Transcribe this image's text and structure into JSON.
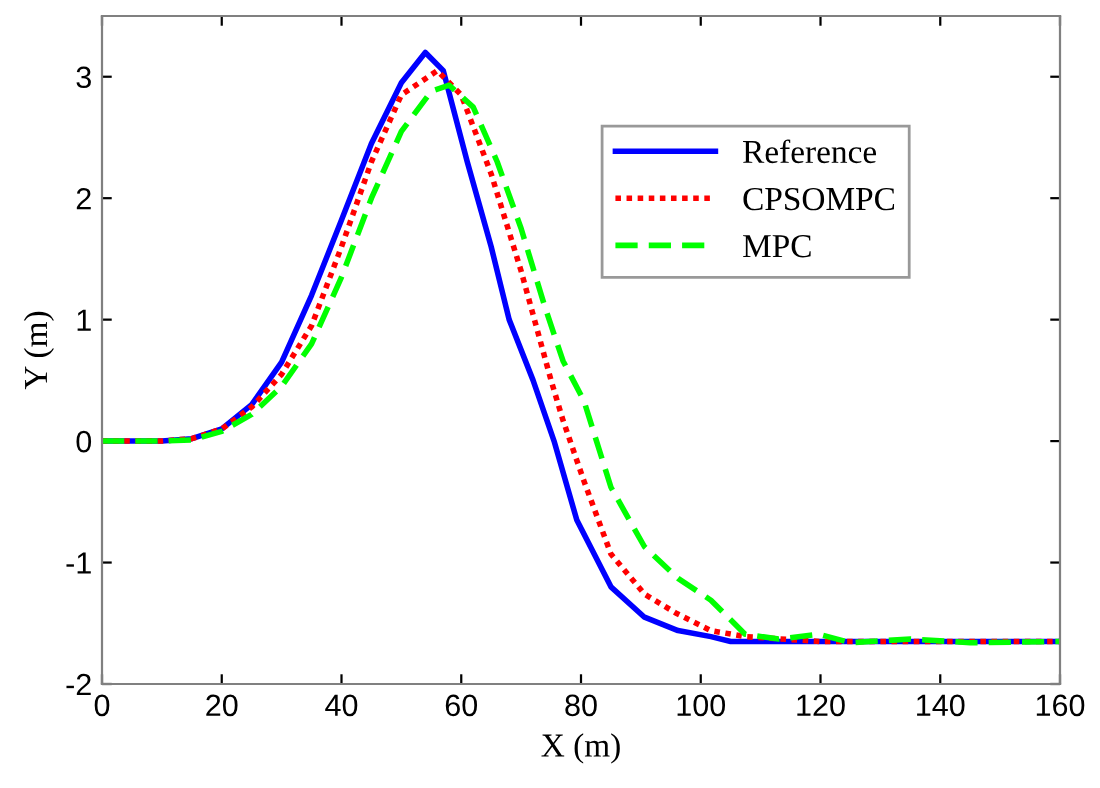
{
  "chart_data": {
    "type": "line",
    "xlabel": "X (m)",
    "ylabel": "Y (m)",
    "xlim": [
      0,
      160
    ],
    "ylim": [
      -2,
      3.5
    ],
    "xticks": [
      0,
      20,
      40,
      60,
      80,
      100,
      120,
      140,
      160
    ],
    "yticks": [
      -2,
      -1,
      0,
      1,
      2,
      3
    ],
    "grid": false,
    "legend": "top right",
    "series": [
      {
        "name": "Reference",
        "color": "#0000ff",
        "line_style": "solid",
        "x": [
          0,
          10,
          15,
          20,
          25,
          30,
          35,
          40,
          45,
          50,
          54,
          57,
          61,
          65,
          68,
          72,
          75.5,
          79.3,
          85,
          90.6,
          96.2,
          101.7,
          105,
          120,
          140,
          160
        ],
        "values": [
          0,
          0,
          0.02,
          0.1,
          0.3,
          0.65,
          1.2,
          1.82,
          2.45,
          2.95,
          3.2,
          3.05,
          2.3,
          1.6,
          1.0,
          0.5,
          0,
          -0.65,
          -1.2,
          -1.45,
          -1.56,
          -1.61,
          -1.65,
          -1.65,
          -1.65,
          -1.65
        ]
      },
      {
        "name": "CPSOMPC",
        "color": "#ff0000",
        "line_style": "dotted",
        "x": [
          0,
          10,
          15,
          20,
          25,
          30,
          35,
          40,
          45,
          50,
          56,
          60,
          65,
          70,
          75,
          77,
          80.5,
          85,
          90.6,
          96,
          101.7,
          107.4,
          120,
          140,
          160
        ],
        "values": [
          0,
          0,
          0.02,
          0.1,
          0.28,
          0.55,
          0.95,
          1.6,
          2.3,
          2.85,
          3.05,
          2.85,
          2.2,
          1.4,
          0.5,
          0.17,
          -0.33,
          -0.93,
          -1.26,
          -1.42,
          -1.56,
          -1.61,
          -1.65,
          -1.65,
          -1.65
        ]
      },
      {
        "name": "MPC",
        "color": "#00ff00",
        "line_style": "dashed",
        "x": [
          0,
          10,
          15,
          20,
          25,
          30,
          35,
          40,
          45,
          50,
          55,
          58,
          62,
          66,
          70,
          74,
          77,
          80.5,
          85,
          90.6,
          96.2,
          101.7,
          107.4,
          113,
          119.7,
          125,
          135,
          145,
          160
        ],
        "values": [
          0,
          0,
          0.01,
          0.08,
          0.22,
          0.45,
          0.8,
          1.35,
          2.0,
          2.55,
          2.88,
          2.93,
          2.75,
          2.3,
          1.75,
          1.1,
          0.66,
          0.33,
          -0.38,
          -0.87,
          -1.13,
          -1.31,
          -1.59,
          -1.63,
          -1.59,
          -1.66,
          -1.63,
          -1.66,
          -1.65
        ]
      }
    ]
  }
}
